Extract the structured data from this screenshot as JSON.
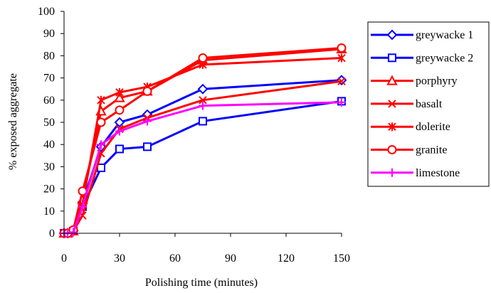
{
  "chart_data": {
    "type": "line",
    "title": "",
    "xlabel": "Polishing time (minutes)",
    "ylabel": "% exposed aggregate",
    "xlim": [
      0,
      150
    ],
    "ylim": [
      0,
      100
    ],
    "xticks": [
      0,
      30,
      60,
      90,
      120,
      150
    ],
    "yticks": [
      0,
      10,
      20,
      30,
      40,
      50,
      60,
      70,
      80,
      90,
      100
    ],
    "grid": false,
    "legend_position": "right",
    "x": [
      0,
      2,
      5,
      10,
      20,
      30,
      45,
      75,
      150
    ],
    "series": [
      {
        "name": "greywacke 1",
        "color": "#0000ff",
        "marker": "diamond",
        "values": [
          0,
          0,
          1,
          14,
          39,
          50,
          53.5,
          65,
          69
        ]
      },
      {
        "name": "greywacke 2",
        "color": "#0000ff",
        "marker": "square",
        "values": [
          0,
          0,
          1,
          12,
          29.5,
          38,
          39,
          50.5,
          59.5
        ]
      },
      {
        "name": "porphyry",
        "color": "#ff0000",
        "marker": "triangle",
        "values": [
          0,
          0,
          1,
          15,
          55,
          61,
          64,
          78,
          83
        ]
      },
      {
        "name": "basalt",
        "color": "#ff0000",
        "marker": "x",
        "values": [
          0,
          0,
          1,
          8,
          36,
          47,
          52,
          60,
          68.5
        ]
      },
      {
        "name": "dolerite",
        "color": "#ff0000",
        "marker": "asterisk",
        "values": [
          0,
          0,
          1,
          13,
          60,
          63.5,
          66,
          76,
          79
        ]
      },
      {
        "name": "granite",
        "color": "#ff0000",
        "marker": "circle",
        "values": [
          0,
          0,
          1.5,
          19,
          50,
          55.5,
          64,
          79,
          83.5
        ]
      },
      {
        "name": "limestone",
        "color": "#ff00ff",
        "marker": "plus",
        "values": [
          0,
          0,
          0.5,
          12,
          40,
          46,
          50.5,
          57.5,
          59
        ]
      }
    ]
  }
}
